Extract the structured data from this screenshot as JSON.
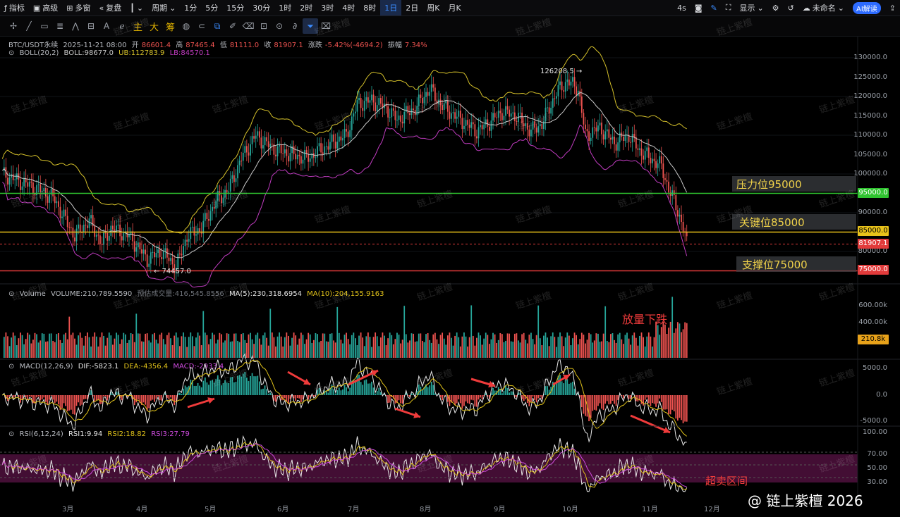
{
  "toolbar": {
    "indicators": "指标",
    "advanced": "高级",
    "multiwin": "多窗",
    "replay": "复盘",
    "period": "周期",
    "intervals": [
      "1分",
      "5分",
      "15分",
      "30分",
      "1时",
      "2时",
      "3时",
      "4时",
      "8时",
      "1日",
      "2日",
      "周K",
      "月K"
    ],
    "active_interval": "1日",
    "countdown": "4s",
    "display": "显示",
    "layout_name": "未命名",
    "ai_label": "AI解读"
  },
  "drawbar": {
    "labels": [
      "主",
      "大",
      "筹"
    ],
    "text_tool": "A"
  },
  "legend": {
    "symbol": "BTC/USDT永续",
    "date": "2025-11-21 08:00",
    "open_label": "开",
    "open": "86601.4",
    "high_label": "高",
    "high": "87465.4",
    "low_label": "低",
    "low": "81111.0",
    "close_label": "收",
    "close": "81907.1",
    "change_label": "涨跌",
    "change": "-5.42%(-4694.2)",
    "amp_label": "振幅",
    "amp": "7.34%",
    "boll_name": "BOLL(20,2)",
    "boll": "BOLL:98677.0",
    "ub": "UB:112783.9",
    "lb": "LB:84570.1"
  },
  "price_axis": [
    "130000.0",
    "125000.0",
    "120000.0",
    "115000.0",
    "110000.0",
    "105000.0",
    "100000.0",
    "90000.0",
    "80000.0"
  ],
  "levels": [
    {
      "price": "95000.0",
      "label": "压力位95000",
      "color": "#2fc42f"
    },
    {
      "price": "85000.0",
      "label": "关键位85000",
      "color": "#e8c21a"
    },
    {
      "price": "75000.0",
      "label": "支撑位75000",
      "color": "#e23b3b"
    }
  ],
  "last_price": "81907.1",
  "high_mark": "126208.5 →",
  "low_mark": "← 74457.0",
  "volume": {
    "name": "Volume",
    "value": "VOLUME:210,789.5590",
    "est_label": "预估成交量:416,545.8556",
    "ma5": "MA(5):230,318.6954",
    "ma10": "MA(10):204,155.9163",
    "axis": [
      "600.00k",
      "400.00k"
    ],
    "tag": "210.8k",
    "note": "放量下跌"
  },
  "macd": {
    "name": "MACD(12,26,9)",
    "dif": "DIF:-5823.1",
    "dea": "DEA:-4356.4",
    "macd": "MACD:-2933.4",
    "axis": [
      "5000.0",
      "0.0",
      "-5000.0"
    ]
  },
  "rsi": {
    "name": "RSI(6,12,24)",
    "rsi1": "RSI1:9.94",
    "rsi2": "RSI2:18.82",
    "rsi3": "RSI3:27.79",
    "axis": [
      "100.00",
      "70.00",
      "50.00",
      "30.00"
    ],
    "note": "超卖区间"
  },
  "time_axis": [
    "3月",
    "4月",
    "5月",
    "6月",
    "7月",
    "8月",
    "9月",
    "10月",
    "11月",
    "12月"
  ],
  "watermark": "链上紫檀",
  "brand": "@ 链上紫檀 2026",
  "colors": {
    "up": "#26a69a",
    "down": "#ef5350",
    "ub": "#d4c02a",
    "mb": "#c8c8c8",
    "lb": "#c03cc0",
    "oversold_bg": "#4a0f3a"
  }
}
